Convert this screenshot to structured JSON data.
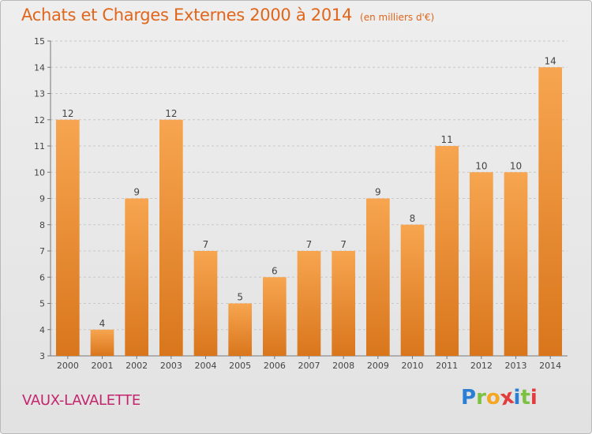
{
  "header": {
    "title": "Achats et Charges Externes 2000 à 2014",
    "subtitle": "(en milliers d'€)"
  },
  "footer": {
    "location": "VAUX-LAVALETTE",
    "brand_letters": [
      "P",
      "r",
      "o",
      "x",
      "i",
      "t",
      "i"
    ],
    "brand_colors": [
      "#2a7fd4",
      "#7cc242",
      "#f5a623",
      "#e23c3c",
      "#2a7fd4",
      "#7cc242",
      "#e23c3c"
    ]
  },
  "colors": {
    "bar_top": "#f7a550",
    "bar_bottom": "#d9761c",
    "accent": "#e0661c",
    "location": "#c4266e"
  },
  "chart_data": {
    "type": "bar",
    "title": "Achats et Charges Externes 2000 à 2014",
    "subtitle": "(en milliers d'€)",
    "xlabel": "",
    "ylabel": "",
    "categories": [
      "2000",
      "2001",
      "2002",
      "2003",
      "2004",
      "2005",
      "2006",
      "2007",
      "2008",
      "2009",
      "2010",
      "2011",
      "2012",
      "2013",
      "2014"
    ],
    "values": [
      12,
      4,
      9,
      12,
      7,
      5,
      6,
      7,
      7,
      9,
      8,
      11,
      10,
      10,
      14
    ],
    "ylim": [
      3,
      15
    ],
    "yticks": [
      3,
      4,
      5,
      6,
      7,
      8,
      9,
      10,
      11,
      12,
      13,
      14,
      15
    ],
    "grid": true,
    "data_labels": true
  }
}
